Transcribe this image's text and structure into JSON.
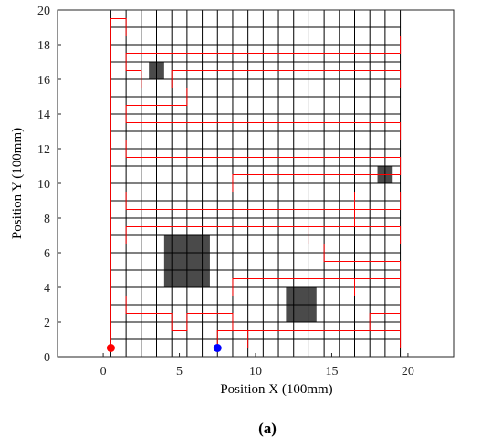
{
  "chart_data": {
    "type": "line",
    "xlabel": "Position X (100mm)",
    "ylabel": "Position Y (100mm)",
    "caption": "(a)",
    "xlim": [
      -3,
      23
    ],
    "ylim": [
      0,
      20
    ],
    "xticks": [
      0,
      5,
      10,
      15,
      20
    ],
    "yticks": [
      0,
      2,
      4,
      6,
      8,
      10,
      12,
      14,
      16,
      18,
      20
    ],
    "grid": {
      "x0": 0.5,
      "x1": 19.5,
      "y0": 0,
      "y1": 20,
      "step": 1,
      "color": "#000000"
    },
    "obstacles": [
      {
        "x": 3,
        "y": 16,
        "w": 1,
        "h": 1
      },
      {
        "x": 18,
        "y": 10,
        "w": 1,
        "h": 1
      },
      {
        "x": 4,
        "y": 4,
        "w": 3,
        "h": 3
      },
      {
        "x": 12,
        "y": 2,
        "w": 2,
        "h": 2
      }
    ],
    "start": {
      "x": 0.5,
      "y": 0.5,
      "color": "#ff0000"
    },
    "end": {
      "x": 7.5,
      "y": 0.5,
      "color": "#0000ff"
    },
    "series": [
      {
        "color": "#ff0000",
        "points": [
          [
            0.5,
            0.5
          ],
          [
            0.5,
            19.5
          ],
          [
            1.5,
            19.5
          ],
          [
            1.5,
            18.5
          ],
          [
            19.5,
            18.5
          ],
          [
            19.5,
            17.5
          ],
          [
            1.5,
            17.5
          ],
          [
            1.5,
            16.5
          ],
          [
            2.5,
            16.5
          ],
          [
            2.5,
            15.5
          ],
          [
            4.5,
            15.5
          ],
          [
            4.5,
            16.5
          ],
          [
            19.5,
            16.5
          ],
          [
            19.5,
            15.5
          ],
          [
            5.5,
            15.5
          ],
          [
            5.5,
            14.5
          ],
          [
            1.5,
            14.5
          ],
          [
            1.5,
            13.5
          ],
          [
            19.5,
            13.5
          ],
          [
            19.5,
            12.5
          ],
          [
            1.5,
            12.5
          ],
          [
            1.5,
            11.5
          ],
          [
            19.5,
            11.5
          ],
          [
            19.5,
            10.5
          ],
          [
            8.5,
            10.5
          ],
          [
            8.5,
            9.5
          ],
          [
            1.5,
            9.5
          ],
          [
            1.5,
            8.5
          ],
          [
            16.5,
            8.5
          ],
          [
            16.5,
            9.5
          ],
          [
            19.5,
            9.5
          ],
          [
            19.5,
            8.5
          ],
          [
            16.5,
            8.5
          ],
          [
            16.5,
            7.5
          ],
          [
            1.5,
            7.5
          ],
          [
            1.5,
            6.5
          ],
          [
            13.5,
            6.5
          ],
          [
            13.5,
            7.5
          ],
          [
            19.5,
            7.5
          ],
          [
            19.5,
            6.5
          ],
          [
            14.5,
            6.5
          ],
          [
            14.5,
            5.5
          ],
          [
            19.5,
            5.5
          ],
          [
            19.5,
            4.5
          ],
          [
            8.5,
            4.5
          ],
          [
            8.5,
            3.5
          ],
          [
            1.5,
            3.5
          ],
          [
            1.5,
            2.5
          ],
          [
            4.5,
            2.5
          ],
          [
            4.5,
            1.5
          ],
          [
            5.5,
            1.5
          ],
          [
            5.5,
            2.5
          ],
          [
            8.5,
            2.5
          ],
          [
            8.5,
            1.5
          ],
          [
            9.5,
            1.5
          ],
          [
            9.5,
            0.5
          ],
          [
            19.5,
            0.5
          ],
          [
            19.5,
            1.5
          ],
          [
            17.5,
            1.5
          ],
          [
            17.5,
            2.5
          ],
          [
            19.5,
            2.5
          ],
          [
            19.5,
            3.5
          ],
          [
            16.5,
            3.5
          ],
          [
            16.5,
            4.5
          ],
          [
            19.5,
            4.5
          ],
          [
            19.5,
            1.5
          ],
          [
            7.5,
            1.5
          ],
          [
            7.5,
            0.5
          ]
        ]
      }
    ]
  }
}
